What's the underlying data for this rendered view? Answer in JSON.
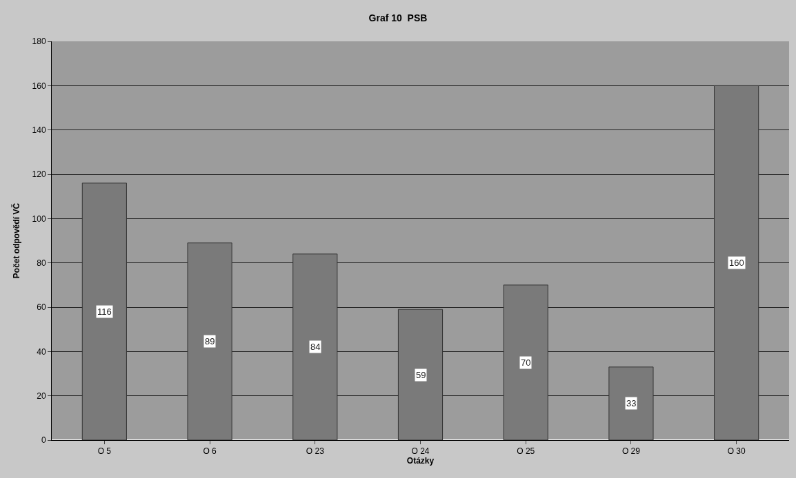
{
  "chart_data": {
    "type": "bar",
    "title": "Graf 10  PSB",
    "xlabel": "Otázky",
    "ylabel": "Počet odpovědí VČ",
    "categories": [
      "O 5",
      "O 6",
      "O 23",
      "O 24",
      "O 25",
      "O 29",
      "O 30"
    ],
    "values": [
      116,
      89,
      84,
      59,
      70,
      33,
      160
    ],
    "color": "#7a7a7a",
    "ylim": [
      0,
      180
    ],
    "yticks": [
      0,
      20,
      40,
      60,
      80,
      100,
      120,
      140,
      160,
      180
    ],
    "grid": "y",
    "data_labels": true,
    "legend": false
  }
}
